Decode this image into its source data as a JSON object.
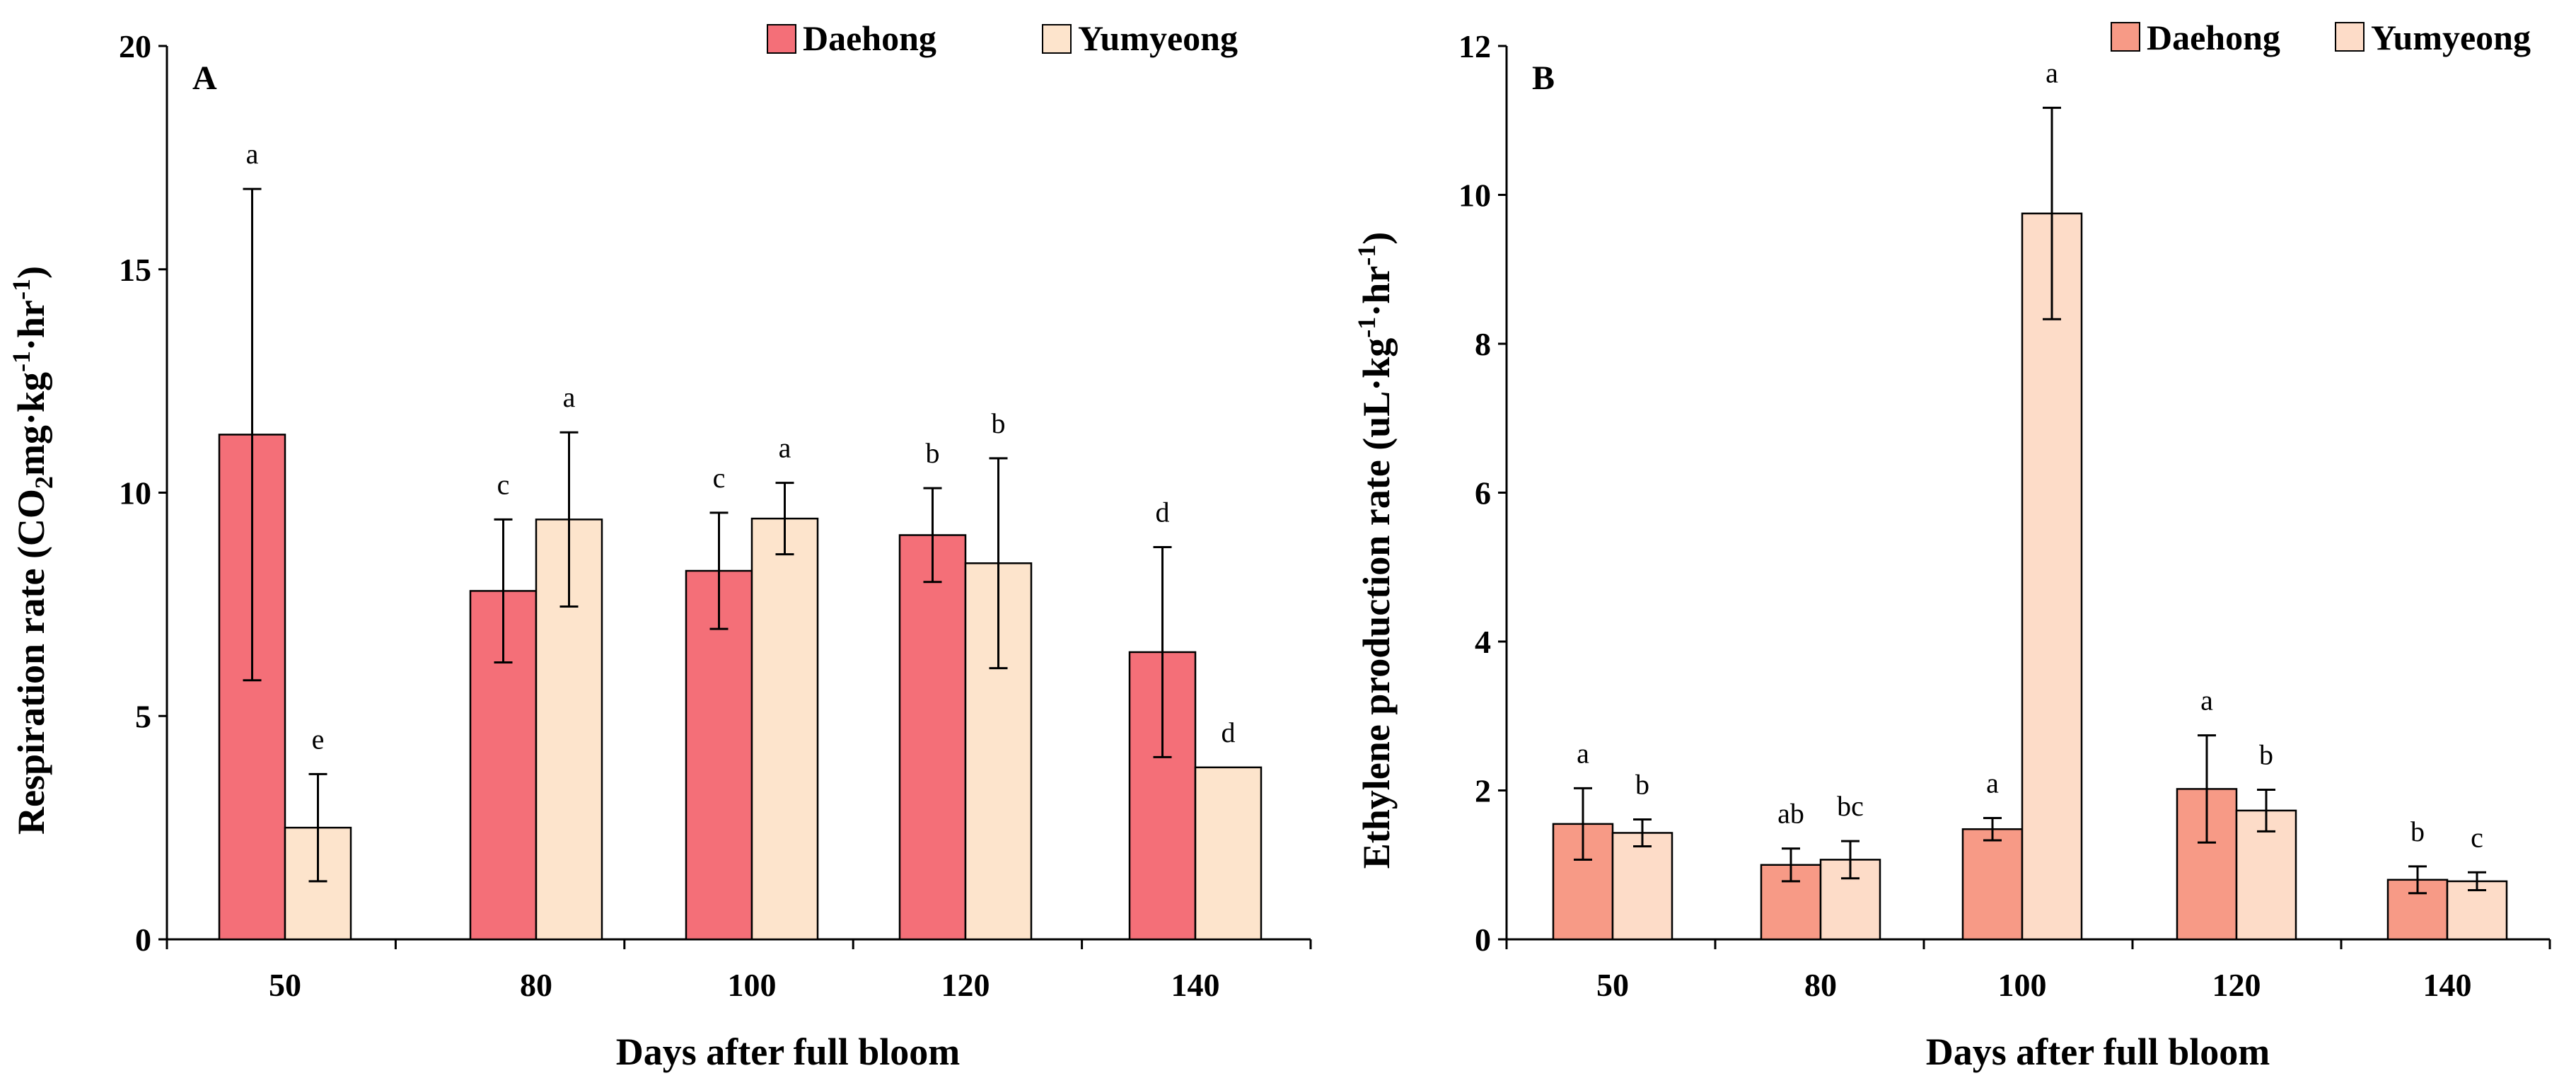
{
  "chart_data": [
    {
      "type": "bar",
      "panel_label": "A",
      "categories": [
        "50",
        "80",
        "100",
        "120",
        "140"
      ],
      "xlabel": "Days after full bloom",
      "ylabel": "Respiration rate (CO2mg·kg-1·hr-1)",
      "ylabel_parts": {
        "a": "Respiration rate (CO",
        "b": "2",
        "c": "mg·kg",
        "d": "-1",
        "e": "·hr",
        "f": "-1",
        "g": ")"
      },
      "ylim": [
        0,
        20
      ],
      "yticks": [
        "0",
        "5",
        "10",
        "15",
        "20"
      ],
      "legend_position": "top-right",
      "grid": false,
      "series": [
        {
          "name": "Daehong",
          "color": "#f46f78",
          "values": [
            11.3,
            7.8,
            8.25,
            9.05,
            6.43
          ],
          "errors": [
            5.5,
            1.6,
            1.3,
            1.05,
            2.35
          ],
          "letters": [
            "a",
            "c",
            "c",
            "b",
            "d"
          ]
        },
        {
          "name": "Yumyeong",
          "color": "#fde4cc",
          "values": [
            2.5,
            9.4,
            9.42,
            8.42,
            3.85
          ],
          "errors": [
            1.2,
            1.95,
            0.8,
            2.35,
            0
          ],
          "letters": [
            "e",
            "a",
            "a",
            "b",
            "d"
          ]
        }
      ]
    },
    {
      "type": "bar",
      "panel_label": "B",
      "categories": [
        "50",
        "80",
        "100",
        "120",
        "140"
      ],
      "xlabel": "Days after full bloom",
      "ylabel": "Ethylene production rate (uL·kg-1·hr-1)",
      "ylabel_parts": {
        "a": "Ethylene production rate (uL·kg",
        "b": "-1",
        "c": "·hr",
        "d": "-1",
        "e": ")"
      },
      "ylim": [
        0,
        12
      ],
      "yticks": [
        "0",
        "2",
        "4",
        "6",
        "8",
        "10",
        "12"
      ],
      "legend_position": "top-right",
      "grid": false,
      "series": [
        {
          "name": "Daehong",
          "color": "#f79a86",
          "values": [
            1.55,
            1.0,
            1.48,
            2.02,
            0.8
          ],
          "errors": [
            0.48,
            0.22,
            0.15,
            0.72,
            0.18
          ],
          "letters": [
            "a",
            "ab",
            "a",
            "a",
            "b"
          ]
        },
        {
          "name": "Yumyeong",
          "color": "#fddcc8",
          "values": [
            1.43,
            1.07,
            9.75,
            1.73,
            0.78
          ],
          "errors": [
            0.18,
            0.25,
            1.42,
            0.28,
            0.12
          ],
          "letters": [
            "b",
            "bc",
            "a",
            "b",
            "c"
          ]
        }
      ]
    }
  ]
}
